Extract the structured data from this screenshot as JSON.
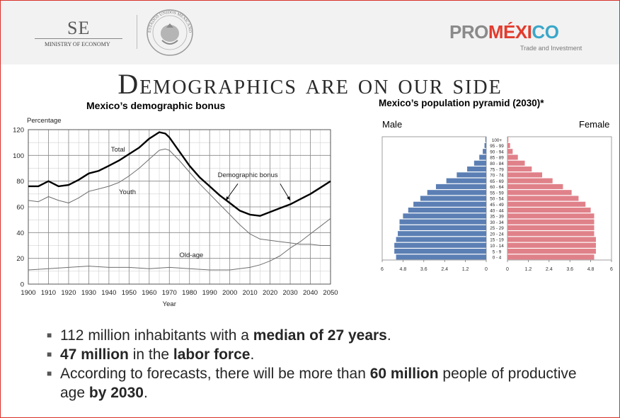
{
  "header": {
    "se_logo": {
      "abbr": "SE",
      "ministry": "MINISTRY OF ECONOMY"
    },
    "seal": {
      "text": "ESTADOS UNIDOS MEXICANOS"
    },
    "promexico_logo": {
      "part1": "PRO",
      "part2": "MÉXI",
      "part3": "CO",
      "tagline": "Trade and Investment"
    }
  },
  "slide_title": "Demographics are on our side",
  "chart_data": [
    {
      "type": "line",
      "title": "Mexico’s demographic bonus",
      "ylabel": "Percentage",
      "xlabel": "Year",
      "xlim": [
        1900,
        2050
      ],
      "ylim": [
        0,
        120
      ],
      "xticks": [
        1900,
        1910,
        1920,
        1930,
        1940,
        1950,
        1960,
        1970,
        1980,
        1990,
        2000,
        2010,
        2020,
        2030,
        2040,
        2050
      ],
      "yticks": [
        0,
        20,
        40,
        60,
        80,
        100,
        120
      ],
      "grid": true,
      "series": [
        {
          "name": "Total",
          "style": "bold",
          "x": [
            1900,
            1905,
            1910,
            1915,
            1920,
            1925,
            1930,
            1935,
            1940,
            1945,
            1950,
            1955,
            1960,
            1965,
            1968,
            1970,
            1975,
            1980,
            1985,
            1990,
            1995,
            2000,
            2005,
            2010,
            2015,
            2020,
            2025,
            2030,
            2035,
            2040,
            2045,
            2050
          ],
          "values": [
            76,
            76,
            80,
            76,
            77,
            81,
            86,
            88,
            92,
            96,
            101,
            106,
            113,
            118,
            117,
            114,
            103,
            92,
            83,
            76,
            69,
            63,
            57,
            54,
            53,
            56,
            59,
            62,
            66,
            70,
            75,
            80
          ]
        },
        {
          "name": "Youth",
          "style": "thin",
          "x": [
            1900,
            1905,
            1910,
            1915,
            1920,
            1925,
            1930,
            1935,
            1940,
            1945,
            1950,
            1955,
            1960,
            1965,
            1968,
            1970,
            1975,
            1980,
            1985,
            1990,
            1995,
            2000,
            2005,
            2010,
            2015,
            2020,
            2025,
            2030,
            2035,
            2040,
            2045,
            2050
          ],
          "values": [
            65,
            64,
            68,
            65,
            63,
            67,
            72,
            74,
            76,
            79,
            84,
            90,
            97,
            104,
            105,
            104,
            96,
            87,
            78,
            70,
            62,
            54,
            46,
            39,
            35,
            34,
            33,
            32,
            31,
            31,
            30,
            30
          ]
        },
        {
          "name": "Old-age",
          "style": "thin",
          "x": [
            1900,
            1910,
            1920,
            1930,
            1940,
            1950,
            1960,
            1970,
            1980,
            1990,
            2000,
            2010,
            2015,
            2020,
            2025,
            2030,
            2035,
            2040,
            2045,
            2050
          ],
          "values": [
            11,
            12,
            13,
            14,
            13,
            13,
            12,
            13,
            12,
            11,
            11,
            13,
            15,
            18,
            22,
            28,
            33,
            39,
            45,
            51
          ]
        }
      ],
      "annotations": [
        "Total",
        "Youth",
        "Demographic bonus",
        "Old-age"
      ]
    },
    {
      "type": "bar",
      "orientation": "horizontal",
      "title": "Mexico’s population pyramid (2030)*",
      "left_label": "Male",
      "right_label": "Female",
      "xlim": [
        -6,
        6
      ],
      "xticks": [
        "6",
        "4.8",
        "3.6",
        "2.4",
        "1.2",
        "0",
        "0",
        "1.2",
        "2.4",
        "3.6",
        "4.8",
        "6"
      ],
      "categories": [
        "0 - 4",
        "5 - 9",
        "10 - 14",
        "15 - 19",
        "20 - 24",
        "25 - 29",
        "30 - 34",
        "35 - 39",
        "40 - 44",
        "45 - 49",
        "50 - 54",
        "55 - 59",
        "60 - 64",
        "65 - 69",
        "70 - 74",
        "75 - 79",
        "80 - 84",
        "85 - 89",
        "90 - 94",
        "95 - 99",
        "100+"
      ],
      "series": [
        {
          "name": "Male",
          "color": "#5b7fb4",
          "values": [
            5.2,
            5.3,
            5.3,
            5.2,
            5.1,
            5.0,
            5.0,
            4.8,
            4.5,
            4.2,
            3.8,
            3.4,
            2.9,
            2.3,
            1.7,
            1.1,
            0.7,
            0.4,
            0.2,
            0.1,
            0.05
          ]
        },
        {
          "name": "Female",
          "color": "#e08189",
          "values": [
            5.0,
            5.1,
            5.1,
            5.1,
            5.0,
            5.0,
            5.0,
            5.0,
            4.8,
            4.5,
            4.1,
            3.7,
            3.2,
            2.6,
            2.0,
            1.4,
            1.0,
            0.6,
            0.3,
            0.15,
            0.05
          ]
        }
      ]
    }
  ],
  "bullets": [
    {
      "parts": [
        {
          "text": "112 million inhabitants with a ",
          "bold": false
        },
        {
          "text": "median of 27 years",
          "bold": true
        },
        {
          "text": ".",
          "bold": false
        }
      ]
    },
    {
      "parts": [
        {
          "text": "47 million",
          "bold": true
        },
        {
          "text": " in the ",
          "bold": false
        },
        {
          "text": "labor force",
          "bold": true
        },
        {
          "text": ".",
          "bold": false
        }
      ]
    },
    {
      "parts": [
        {
          "text": "According to forecasts, there will be more than ",
          "bold": false
        },
        {
          "text": "60 million",
          "bold": true
        },
        {
          "text": " people of productive age ",
          "bold": false
        },
        {
          "text": "by 2030",
          "bold": true
        },
        {
          "text": ".",
          "bold": false
        }
      ]
    }
  ],
  "colors": {
    "border": "#d9322a",
    "header_bg": "#f2f2f2",
    "male": "#5b7fb4",
    "female": "#e08189"
  }
}
